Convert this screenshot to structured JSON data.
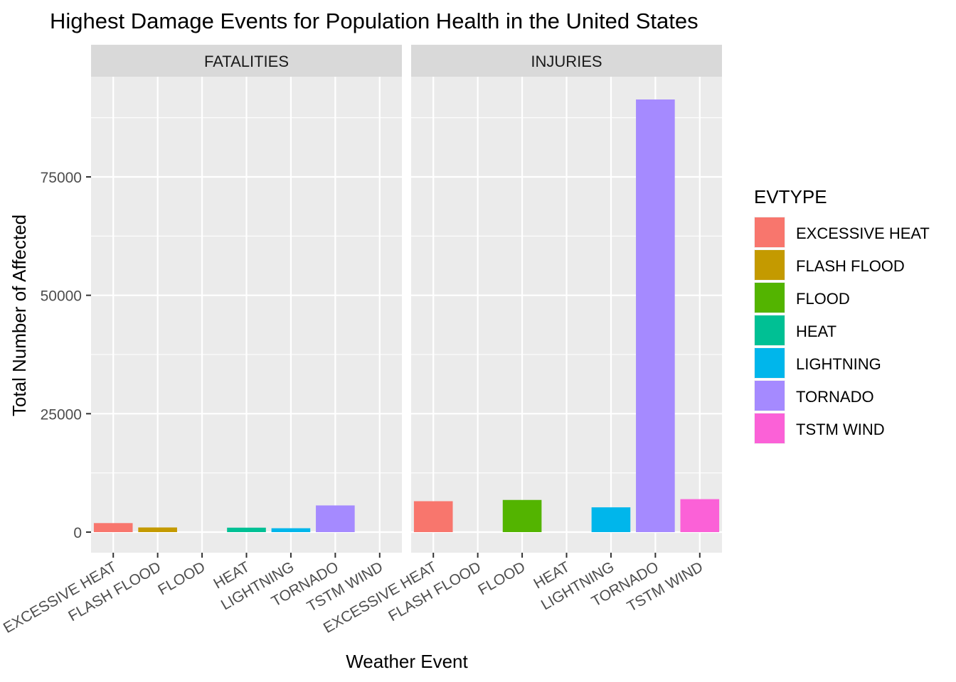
{
  "chart_data": {
    "type": "bar",
    "title": "Highest Damage Events for Population Health in the United States",
    "xlabel": "Weather Event",
    "ylabel": "Total Number of Affected",
    "categories": [
      "EXCESSIVE HEAT",
      "FLASH FLOOD",
      "FLOOD",
      "HEAT",
      "LIGHTNING",
      "TORNADO",
      "TSTM WIND"
    ],
    "ylim": [
      -8000,
      96000
    ],
    "yticks": [
      0,
      25000,
      50000,
      75000
    ],
    "ytick_labels": [
      "0",
      "25000",
      "50000",
      "75000"
    ],
    "grid": true,
    "facets": [
      {
        "label": "FATALITIES",
        "values": [
          1903,
          978,
          null,
          937,
          816,
          5633,
          null
        ]
      },
      {
        "label": "INJURIES",
        "values": [
          6525,
          null,
          6789,
          null,
          5230,
          91346,
          6957
        ]
      }
    ],
    "legend": {
      "title": "EVTYPE",
      "position": "right",
      "items": [
        {
          "label": "EXCESSIVE HEAT",
          "color": "#F8766D"
        },
        {
          "label": "FLASH FLOOD",
          "color": "#C49A00"
        },
        {
          "label": "FLOOD",
          "color": "#53B400"
        },
        {
          "label": "HEAT",
          "color": "#00C094"
        },
        {
          "label": "LIGHTNING",
          "color": "#00B6EB"
        },
        {
          "label": "TORNADO",
          "color": "#A58AFF"
        },
        {
          "label": "TSTM WIND",
          "color": "#FB61D7"
        }
      ]
    }
  }
}
